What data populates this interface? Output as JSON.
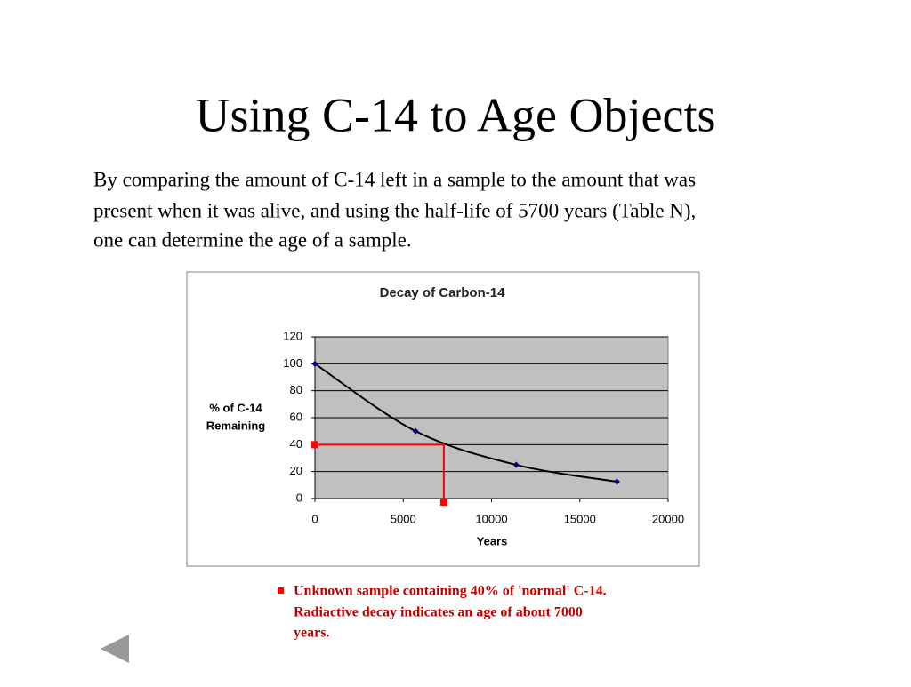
{
  "title": "Using C-14 to Age Objects",
  "body": [
    "By comparing the amount of C-14 left in a sample to the amount that was",
    "present when it was alive, and using the half-life of 5700 years (Table N),",
    "one can determine the age of a sample."
  ],
  "chart_data": {
    "type": "line",
    "title": "Decay of Carbon-14",
    "x_label": "Years",
    "y_label": [
      "%  of C-14",
      "Remaining"
    ],
    "x": [
      0,
      5700,
      11400,
      17100
    ],
    "series": [
      {
        "color": "#000000",
        "marker_color": "#000080",
        "values": [
          100,
          50,
          25,
          12.5
        ]
      }
    ],
    "smooth": true,
    "xlim": [
      0,
      20000
    ],
    "xticks": [
      0,
      5000,
      10000,
      15000,
      20000
    ],
    "ylim": [
      0,
      120
    ],
    "yticks": [
      0,
      20,
      40,
      60,
      80,
      100,
      120
    ],
    "grid": true,
    "plot_background": "#c0c0c0",
    "reading": {
      "x": 7300,
      "y": 40,
      "color": "#ff0000"
    }
  },
  "note": [
    "Unknown sample containing 40% of 'normal' C-14.",
    "Radiactive decay indicates an age of about 7000",
    "years."
  ]
}
